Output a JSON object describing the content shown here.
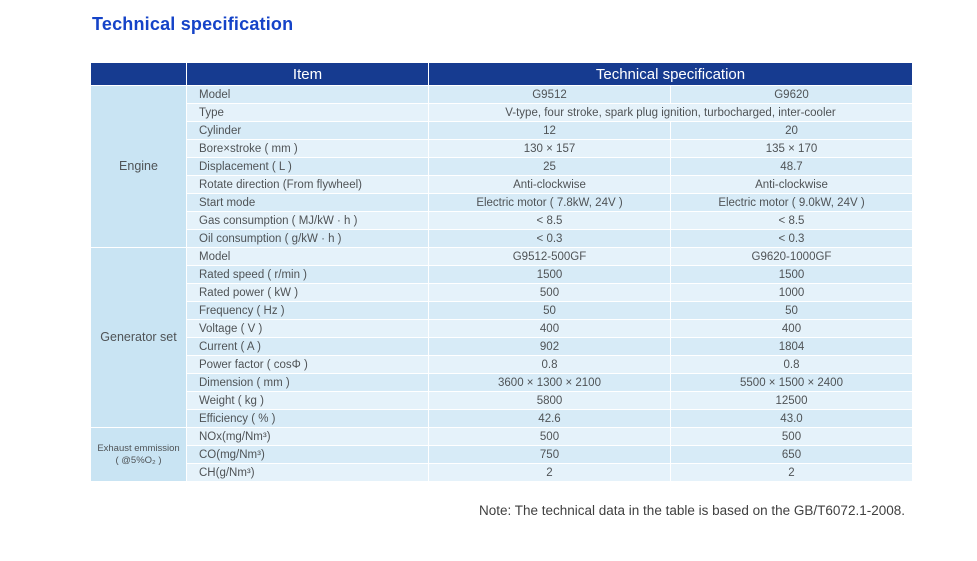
{
  "page_title": "Technical specification",
  "table": {
    "header": {
      "item_label": "Item",
      "spec_label": "Technical specification"
    },
    "groups": [
      {
        "label": "Engine",
        "rows": [
          {
            "item": "Model",
            "values": [
              "G9512",
              "G9620"
            ]
          },
          {
            "item": "Type",
            "values": [
              "V-type, four stroke, spark plug ignition, turbocharged, inter-cooler"
            ]
          },
          {
            "item": "Cylinder",
            "values": [
              "12",
              "20"
            ]
          },
          {
            "item": "Bore×stroke ( mm )",
            "values": [
              "130 × 157",
              "135 × 170"
            ]
          },
          {
            "item": "Displacement ( L )",
            "values": [
              "25",
              "48.7"
            ]
          },
          {
            "item": "Rotate direction (From flywheel)",
            "values": [
              "Anti-clockwise",
              "Anti-clockwise"
            ]
          },
          {
            "item": "Start mode",
            "values": [
              "Electric motor ( 7.8kW, 24V )",
              "Electric motor ( 9.0kW, 24V )"
            ]
          },
          {
            "item": "Gas consumption ( MJ/kW · h )",
            "values": [
              "< 8.5",
              "< 8.5"
            ]
          },
          {
            "item": "Oil consumption ( g/kW · h )",
            "values": [
              "< 0.3",
              "< 0.3"
            ]
          }
        ]
      },
      {
        "label": "Generator set",
        "rows": [
          {
            "item": "Model",
            "values": [
              "G9512-500GF",
              "G9620-1000GF"
            ]
          },
          {
            "item": "Rated speed ( r/min )",
            "values": [
              "1500",
              "1500"
            ]
          },
          {
            "item": "Rated power ( kW )",
            "values": [
              "500",
              "1000"
            ]
          },
          {
            "item": "Frequency ( Hz )",
            "values": [
              "50",
              "50"
            ]
          },
          {
            "item": "Voltage ( V )",
            "values": [
              "400",
              "400"
            ]
          },
          {
            "item": "Current ( A )",
            "values": [
              "902",
              "1804"
            ]
          },
          {
            "item": "Power factor ( cosΦ )",
            "values": [
              "0.8",
              "0.8"
            ]
          },
          {
            "item": "Dimension ( mm )",
            "values": [
              "3600 × 1300 × 2100",
              "5500 × 1500 × 2400"
            ]
          },
          {
            "item": "Weight ( kg )",
            "values": [
              "5800",
              "12500"
            ]
          },
          {
            "item": "Efficiency ( % )",
            "values": [
              "42.6",
              "43.0"
            ]
          }
        ]
      },
      {
        "label": "Exhaust emmission",
        "sublabel": "( @5%O₂ )",
        "small": true,
        "rows": [
          {
            "item": "NOx(mg/Nm³)",
            "values": [
              "500",
              "500"
            ]
          },
          {
            "item": "CO(mg/Nm³)",
            "values": [
              "750",
              "650"
            ]
          },
          {
            "item": "CH(g/Nm³)",
            "values": [
              "2",
              "2"
            ]
          }
        ]
      }
    ]
  },
  "note": "Note: The technical data in the table is based on the GB/T6072.1-2008."
}
